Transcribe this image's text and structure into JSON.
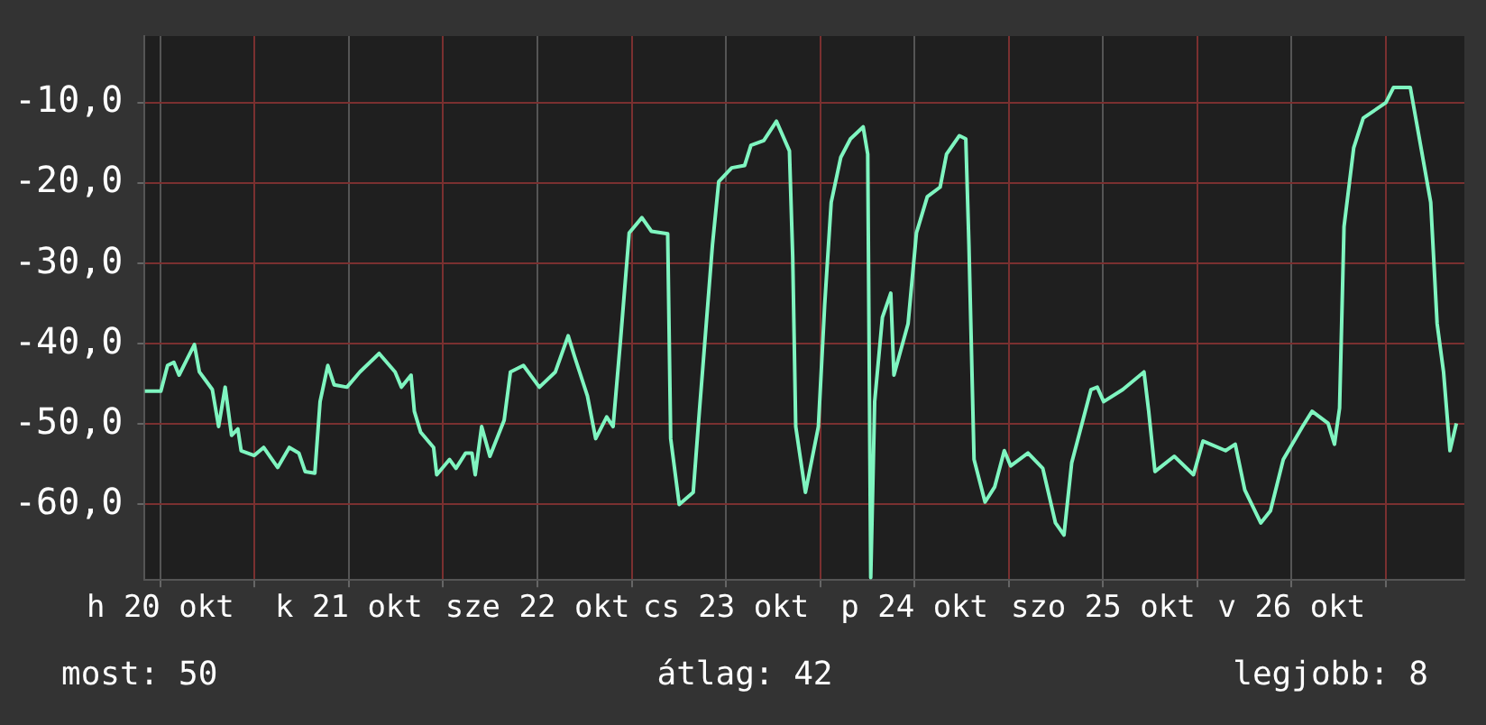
{
  "chart_data": {
    "type": "line",
    "series": [
      {
        "color": "#7ff5c0",
        "x": [
          "--10-20T10:00",
          "--10-20T12:04",
          "--10-20T12:55",
          "--10-20T13:43",
          "--10-20T14:23",
          "--10-20T15:21",
          "--10-20T16:20",
          "--10-20T16:58",
          "--10-20T17:48",
          "--10-20T18:37",
          "--10-20T19:25",
          "--10-20T20:15",
          "--10-20T21:04",
          "--10-20T21:52",
          "--10-20T22:17",
          "--10-20T23:56",
          "--10-21T01:09",
          "--10-21T02:56",
          "--10-21T04:25",
          "--10-21T05:38",
          "--10-21T06:26",
          "--10-21T07:40",
          "--10-21T08:20",
          "--10-21T09:19",
          "--10-21T10:07",
          "--10-21T11:45",
          "--10-21T13:24",
          "--10-21T15:51",
          "--10-21T17:53",
          "--10-21T18:41",
          "--10-21T19:55",
          "--10-21T20:20",
          "--10-21T21:08",
          "--10-21T22:47",
          "--10-21T23:11",
          "--10-22T00:49",
          "--10-22T01:38",
          "--10-22T02:52",
          "--10-22T03:40",
          "--10-22T04:05",
          "--10-22T04:54",
          "--10-22T05:57",
          "--10-22T07:46",
          "--10-22T08:34",
          "--10-22T10:13",
          "--10-22T12:15",
          "--10-22T14:17",
          "--10-22T15:55",
          "--10-22T16:44",
          "--10-22T18:22",
          "--10-22T19:25",
          "--10-22T20:49",
          "--10-22T21:38",
          "--10-22T22:36",
          "--10-22T23:41",
          "--10-23T01:18",
          "--10-23T02:31",
          "--10-23T04:35",
          "--10-23T04:58",
          "--10-23T06:03",
          "--10-23T07:50",
          "--10-23T08:39",
          "--10-23T10:17",
          "--10-23T11:05",
          "--10-23T12:44",
          "--10-23T14:23",
          "--10-23T15:11",
          "--10-23T16:49",
          "--10-23T18:26",
          "--10-23T20:05",
          "--10-23T20:30",
          "--10-23T20:53",
          "--10-23T22:07",
          "--10-23T23:46",
          "--10-24T00:34",
          "--10-24T01:24",
          "--10-24T02:37",
          "--10-24T03:51",
          "--10-24T05:28",
          "--10-24T06:03",
          "--10-24T06:26",
          "--10-24T06:56",
          "--10-24T07:55",
          "--10-24T08:59",
          "--10-24T09:23",
          "--10-24T11:11",
          "--10-24T12:15",
          "--10-24T13:38",
          "--10-24T15:16",
          "--10-24T16:05",
          "--10-24T17:43",
          "--10-24T18:32",
          "--10-24T18:56",
          "--10-24T19:35",
          "--10-24T20:59",
          "--10-24T22:13",
          "--10-24T23:26",
          "--10-25T00:15",
          "--10-25T02:27",
          "--10-25T04:20",
          "--10-25T05:57",
          "--10-25T07:02",
          "--10-25T08:01",
          "--10-25T10:28",
          "--10-25T11:16",
          "--10-25T12:05",
          "--10-25T14:31",
          "--10-25T17:13",
          "--10-25T17:49",
          "--10-25T18:37",
          "--10-25T21:04",
          "--10-25T23:31",
          "--10-26T00:44",
          "--10-26T03:36",
          "--10-26T04:50",
          "--10-26T06:03",
          "--10-26T08:05",
          "--10-26T09:19",
          "--10-26T10:57",
          "--10-26T13:24",
          "--10-26T14:37",
          "--10-26T16:39",
          "--10-26T17:28",
          "--10-26T18:07",
          "--10-26T18:41",
          "--10-26T19:55",
          "--10-26T21:08",
          "--10-27T00:00",
          "--10-27T00:59",
          "--10-27T03:07",
          "--10-27T04:29",
          "--10-27T05:43",
          "--10-27T06:32",
          "--10-27T07:21",
          "--10-27T08:10",
          "--10-27T08:59"
        ],
        "values": [
          -45.9,
          -45.9,
          -42.7,
          -42.3,
          -43.9,
          -42.0,
          -40.1,
          -43.5,
          -44.6,
          -45.7,
          -50.3,
          -45.4,
          -51.4,
          -50.6,
          -53.3,
          -53.9,
          -52.9,
          -55.4,
          -52.9,
          -53.6,
          -55.9,
          -56.1,
          -47.2,
          -42.7,
          -45.1,
          -45.4,
          -43.5,
          -41.2,
          -43.5,
          -45.4,
          -43.9,
          -48.4,
          -51.0,
          -52.9,
          -56.3,
          -54.4,
          -55.5,
          -53.6,
          -53.6,
          -56.3,
          -50.3,
          -54.0,
          -49.5,
          -43.5,
          -42.7,
          -45.4,
          -43.5,
          -39.0,
          -41.6,
          -46.5,
          -51.8,
          -49.1,
          -50.3,
          -39.3,
          -26.2,
          -24.3,
          -26.0,
          -26.3,
          -51.8,
          -60.0,
          -58.5,
          -48.0,
          -27.7,
          -19.8,
          -18.1,
          -17.8,
          -15.3,
          -14.7,
          -12.3,
          -16.0,
          -29.2,
          -50.3,
          -58.5,
          -50.3,
          -35.2,
          -22.4,
          -16.8,
          -14.5,
          -13.0,
          -16.4,
          -69.1,
          -47.2,
          -36.7,
          -33.7,
          -43.9,
          -37.5,
          -26.2,
          -21.7,
          -20.5,
          -16.4,
          -14.1,
          -14.5,
          -27.7,
          -54.4,
          -59.7,
          -57.8,
          -53.3,
          -55.2,
          -53.6,
          -55.5,
          -62.3,
          -63.8,
          -54.8,
          -45.7,
          -45.4,
          -47.2,
          -45.7,
          -43.5,
          -48.4,
          -55.9,
          -54.0,
          -56.3,
          -52.1,
          -53.3,
          -52.5,
          -58.2,
          -62.3,
          -60.8,
          -54.4,
          -50.3,
          -48.4,
          -49.9,
          -52.5,
          -48.0,
          -25.4,
          -15.6,
          -11.9,
          -10.0,
          -8.1,
          -8.1,
          -15.6,
          -22.4,
          -37.5,
          -43.5,
          -53.3,
          -49.9
        ]
      }
    ],
    "xlim": [
      "--10-20T10:00",
      "--10-27T10:00"
    ],
    "xticks": [
      {
        "value": "--10-20T12:00",
        "label": "h 20 okt"
      },
      {
        "value": "--10-21",
        "label": null
      },
      {
        "value": "--10-21T12:00",
        "label": "k 21 okt"
      },
      {
        "value": "--10-22",
        "label": null
      },
      {
        "value": "--10-22T12:00",
        "label": "sze 22 okt"
      },
      {
        "value": "--10-23",
        "label": null
      },
      {
        "value": "--10-23T12:00",
        "label": "cs 23 okt"
      },
      {
        "value": "--10-24",
        "label": null
      },
      {
        "value": "--10-24T12:00",
        "label": "p 24 okt"
      },
      {
        "value": "--10-25",
        "label": null
      },
      {
        "value": "--10-25T12:00",
        "label": "szo 25 okt"
      },
      {
        "value": "--10-26",
        "label": null
      },
      {
        "value": "--10-26T12:00",
        "label": "v 26 okt"
      },
      {
        "value": "--10-27",
        "label": null
      }
    ],
    "ylim": [
      -69.4,
      -1.7
    ],
    "yticks": [
      {
        "value": -60,
        "label": "-60,0"
      },
      {
        "value": -50,
        "label": "-50,0"
      },
      {
        "value": -40,
        "label": "-40,0"
      },
      {
        "value": -30,
        "label": "-30,0"
      },
      {
        "value": -20,
        "label": "-20,0"
      },
      {
        "value": -10,
        "label": "-10,0"
      }
    ],
    "grid": true,
    "legend": false,
    "marker": "none",
    "line_style": "solid",
    "annotations": [
      "most: 50",
      "átlag: 42",
      "legjobb: 8"
    ]
  }
}
